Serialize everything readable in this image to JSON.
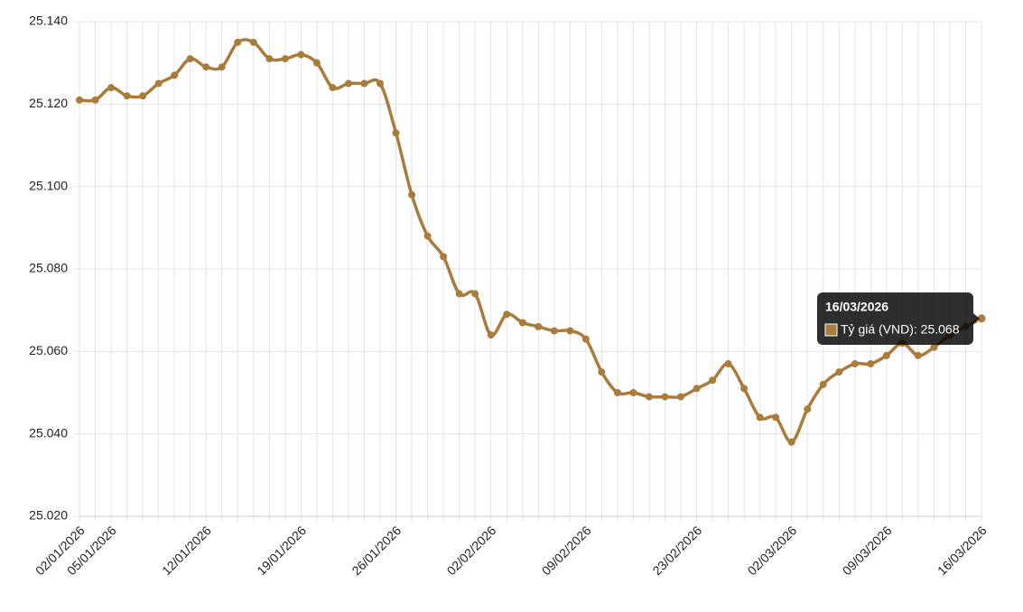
{
  "chart_data": {
    "type": "line",
    "categories": [
      "02/01/2026",
      null,
      "05/01/2026",
      null,
      null,
      null,
      null,
      null,
      "12/01/2026",
      null,
      null,
      null,
      null,
      null,
      "19/01/2026",
      null,
      null,
      null,
      null,
      null,
      "26/01/2026",
      null,
      null,
      null,
      null,
      null,
      "02/02/2026",
      null,
      null,
      null,
      null,
      null,
      "09/02/2026",
      null,
      null,
      null,
      null,
      null,
      null,
      "23/02/2026",
      null,
      null,
      null,
      null,
      null,
      "02/03/2026",
      null,
      null,
      null,
      null,
      null,
      "09/03/2026",
      null,
      null,
      null,
      null,
      null,
      "16/03/2026"
    ],
    "series": [
      {
        "name": "Tỷ giá (VND)",
        "color": "#a97c3c",
        "values": [
          25.121,
          25.121,
          25.124,
          25.122,
          25.122,
          25.125,
          25.127,
          25.131,
          25.129,
          25.129,
          25.135,
          25.135,
          25.131,
          25.131,
          25.132,
          25.13,
          25.124,
          25.125,
          25.125,
          25.125,
          25.113,
          25.098,
          25.088,
          25.083,
          25.074,
          25.074,
          25.064,
          25.069,
          25.067,
          25.066,
          25.065,
          25.065,
          25.063,
          25.055,
          25.05,
          25.05,
          25.049,
          25.049,
          25.049,
          25.051,
          25.053,
          25.057,
          25.051,
          25.044,
          25.044,
          25.038,
          25.046,
          25.052,
          25.055,
          25.057,
          25.057,
          25.059,
          25.062,
          25.059,
          25.061,
          25.064,
          25.066,
          25.068
        ]
      }
    ],
    "ylim": [
      25.02,
      25.14
    ],
    "yticks": [
      {
        "value": 25.02,
        "label": "25.020"
      },
      {
        "value": 25.04,
        "label": "25.040"
      },
      {
        "value": 25.06,
        "label": "25.060"
      },
      {
        "value": 25.08,
        "label": "25.080"
      },
      {
        "value": 25.1,
        "label": "25.100"
      },
      {
        "value": 25.12,
        "label": "25.120"
      },
      {
        "value": 25.14,
        "label": "25.140"
      }
    ],
    "grid": true,
    "tooltip": {
      "title": "16/03/2026",
      "text": "Tỷ giá (VND): 25.068"
    }
  }
}
